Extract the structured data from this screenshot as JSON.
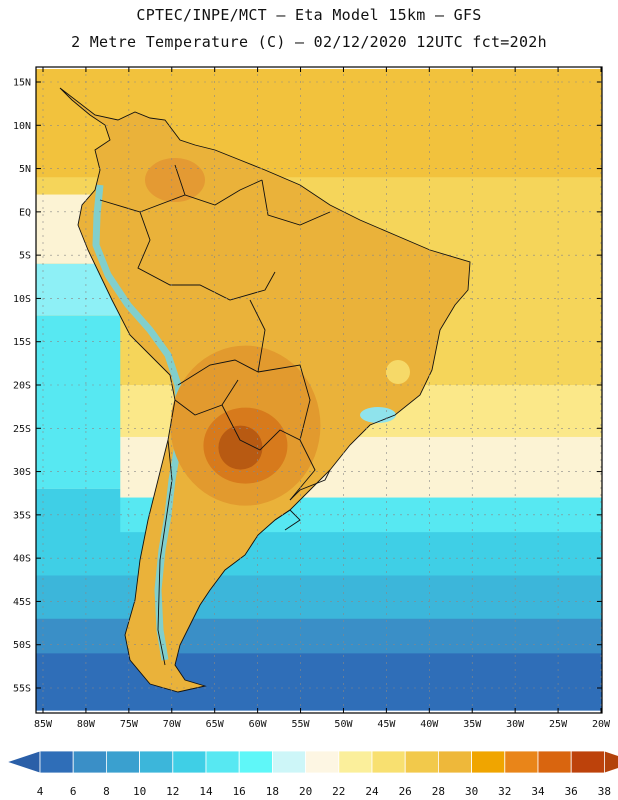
{
  "header": {
    "line1": "CPTEC/INPE/MCT –  Eta Model 15km – GFS",
    "line2": "2 Metre Temperature (C) – 02/12/2020 12UTC fct=202h"
  },
  "map": {
    "lat_labels": [
      "15N",
      "10N",
      "5N",
      "EQ",
      "5S",
      "10S",
      "15S",
      "20S",
      "25S",
      "30S",
      "35S",
      "40S",
      "45S",
      "50S",
      "55S"
    ],
    "lon_labels": [
      "85W",
      "80W",
      "75W",
      "70W",
      "65W",
      "60W",
      "55W",
      "50W",
      "45W",
      "40W",
      "35W",
      "30W",
      "25W",
      "20W"
    ],
    "ocean_bands": [
      {
        "from_lat": 16.5,
        "to_lat": 4,
        "temp_class": 28,
        "color": "#f2c23d"
      },
      {
        "from_lat": 4,
        "to_lat": -20,
        "temp_class": 26,
        "color": "#f5d55a"
      },
      {
        "from_lat": -20,
        "to_lat": -26,
        "temp_class": 24,
        "color": "#fbe889"
      },
      {
        "from_lat": -26,
        "to_lat": -33,
        "temp_class": 22,
        "color": "#fcf3d4"
      },
      {
        "from_lat": -33,
        "to_lat": -37,
        "temp_class": 18,
        "color": "#57e8f2"
      },
      {
        "from_lat": -37,
        "to_lat": -42,
        "temp_class": 14,
        "color": "#3fcfe6"
      },
      {
        "from_lat": -42,
        "to_lat": -47,
        "temp_class": 12,
        "color": "#3cb6da"
      },
      {
        "from_lat": -47,
        "to_lat": -51,
        "temp_class": 8,
        "color": "#3a8fc7"
      },
      {
        "from_lat": -51,
        "to_lat": -57.5,
        "temp_class": 6,
        "color": "#2f6eb8"
      }
    ],
    "pacific_bands": [
      {
        "from_lat": 2,
        "to_lat": -6,
        "temp_class": 22,
        "color": "#fcf3d4"
      },
      {
        "from_lat": -6,
        "to_lat": -12,
        "temp_class": 18,
        "color": "#8ef0f6"
      },
      {
        "from_lat": -12,
        "to_lat": -32,
        "temp_class": 16,
        "color": "#57e8f2"
      },
      {
        "from_lat": -32,
        "to_lat": -42,
        "temp_class": 14,
        "color": "#3fcfe6"
      }
    ],
    "hotspot": {
      "lon": -62,
      "lat": -27,
      "temp_class": 36,
      "color": "#b85a12"
    },
    "land_color": "#eab23a"
  },
  "legend": {
    "colors": [
      "#2f6eb8",
      "#3a8fc7",
      "#3aa0cf",
      "#3cb6da",
      "#3fcfe6",
      "#57e8f2",
      "#5ff7f8",
      "#cdf6f8",
      "#fdf6e3",
      "#fbef9b",
      "#f8e070",
      "#f2c94b",
      "#eeb83a",
      "#f0a500",
      "#e98519",
      "#d9650f",
      "#bd420b"
    ],
    "low_color": "#2a5fa8",
    "high_color": "#b3420b",
    "labels": [
      "4",
      "6",
      "8",
      "10",
      "12",
      "14",
      "16",
      "18",
      "20",
      "22",
      "24",
      "26",
      "28",
      "30",
      "32",
      "34",
      "36",
      "38"
    ]
  }
}
